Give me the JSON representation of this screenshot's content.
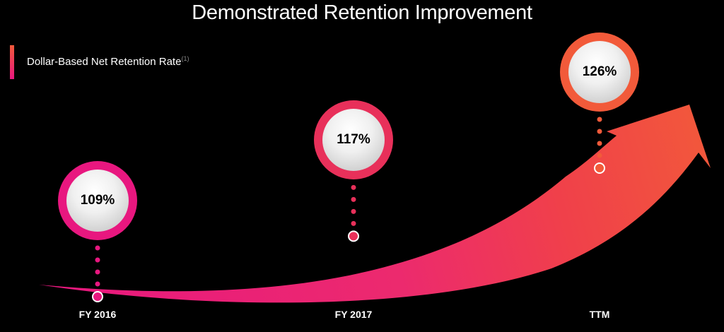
{
  "title": "Demonstrated Retention Improvement",
  "legend": {
    "label": "Dollar-Based Net Retention Rate",
    "footnote": "(1)"
  },
  "colors": {
    "pink": "#e8177f",
    "rose": "#e8305a",
    "orange": "#f25a3a"
  },
  "chart_data": {
    "type": "line",
    "categories": [
      "FY 2016",
      "FY 2017",
      "TTM"
    ],
    "series": [
      {
        "name": "Dollar-Based Net Retention Rate",
        "values": [
          109,
          117,
          126
        ]
      }
    ],
    "data_labels": [
      "109%",
      "117%",
      "126%"
    ],
    "xlabel": "",
    "ylabel": "",
    "grid": false,
    "legend_position": "top-left"
  }
}
